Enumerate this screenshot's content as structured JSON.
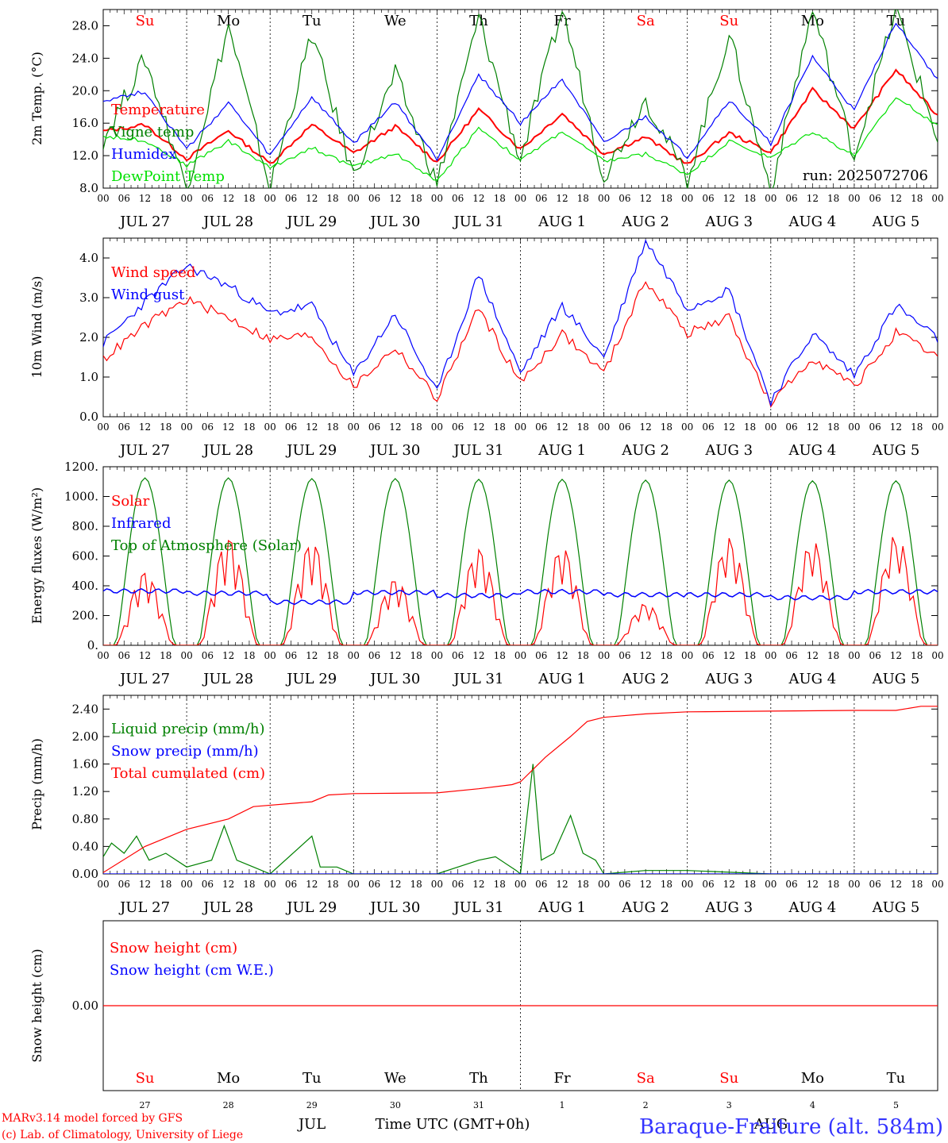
{
  "footer": {
    "model_line": "MARv3.14 model forced by GFS",
    "copyright_line": "(c) Lab. of Climatology, University of Liege",
    "time_label": "Time UTC (GMT+0h)",
    "station": "Baraque-Fraiture (alt. 584m)",
    "month_left": "JUL",
    "month_right": "AUG"
  },
  "colors": {
    "red": "#ff0000",
    "green": "#008000",
    "blue": "#0000ff",
    "lightgreen": "#00e000",
    "weekend": "#ff0000",
    "weekday": "#000000"
  },
  "days": [
    {
      "dow": "Su",
      "weekend": true,
      "date": "JUL 27",
      "num": "27"
    },
    {
      "dow": "Mo",
      "weekend": false,
      "date": "JUL 28",
      "num": "28"
    },
    {
      "dow": "Tu",
      "weekend": false,
      "date": "JUL 29",
      "num": "29"
    },
    {
      "dow": "We",
      "weekend": false,
      "date": "JUL 30",
      "num": "30"
    },
    {
      "dow": "Th",
      "weekend": false,
      "date": "JUL 31",
      "num": "31"
    },
    {
      "dow": "Fr",
      "weekend": false,
      "date": "AUG  1",
      "num": "1"
    },
    {
      "dow": "Sa",
      "weekend": true,
      "date": "AUG  2",
      "num": "2"
    },
    {
      "dow": "Su",
      "weekend": true,
      "date": "AUG  3",
      "num": "3"
    },
    {
      "dow": "Mo",
      "weekend": false,
      "date": "AUG  4",
      "num": "4"
    },
    {
      "dow": "Tu",
      "weekend": false,
      "date": "AUG  5",
      "num": "5"
    }
  ],
  "hour_ticks": [
    "00",
    "06",
    "12",
    "18"
  ],
  "end_hour_tick": "00",
  "chart_data": [
    {
      "id": "temp",
      "type": "line",
      "ylabel": "2m Temp. (°C)",
      "ylim": [
        8,
        30
      ],
      "yticks": [
        "8.0",
        "12.0",
        "16.0",
        "20.0",
        "24.0",
        "28.0"
      ],
      "ytick_values": [
        8,
        12,
        16,
        20,
        24,
        28
      ],
      "show_days": true,
      "annotation": "run: 2025072706",
      "x_days": [
        0,
        0.5,
        1,
        1.5,
        2,
        2.5,
        3,
        3.5,
        4,
        4.5,
        5,
        5.5,
        6,
        6.5,
        7,
        7.5,
        8,
        8.5,
        9,
        9.5,
        10
      ],
      "series": [
        {
          "name": "Temperature",
          "color": "#ff0000",
          "values": [
            15.0,
            15.8,
            11.6,
            15.1,
            11.0,
            15.8,
            12.3,
            15.6,
            11.2,
            17.7,
            12.8,
            17.2,
            12.2,
            14.3,
            10.9,
            14.8,
            12.4,
            20.1,
            15.3,
            22.6,
            16.9
          ]
        },
        {
          "name": "Vigne temp",
          "color": "#008000",
          "values": [
            14.0,
            24.0,
            8.0,
            28.0,
            8.0,
            27.0,
            9.5,
            22.0,
            8.5,
            29.0,
            11.5,
            30.0,
            9.5,
            19.0,
            9.0,
            27.0,
            7.8,
            30.0,
            12.0,
            30.0,
            14.0
          ]
        },
        {
          "name": "Humidex",
          "color": "#0000ff",
          "values": [
            18.8,
            19.9,
            12.8,
            18.5,
            12.0,
            19.2,
            13.5,
            18.6,
            11.6,
            22.0,
            16.0,
            21.5,
            13.5,
            16.8,
            11.8,
            18.8,
            13.5,
            24.2,
            17.5,
            28.5,
            21.3
          ]
        },
        {
          "name": "DewPoint Temp",
          "color": "#00e000",
          "values": [
            14.4,
            13.9,
            10.8,
            13.8,
            10.5,
            13.0,
            10.6,
            12.3,
            8.8,
            15.5,
            11.4,
            15.0,
            11.3,
            12.2,
            9.7,
            13.8,
            11.7,
            15.0,
            12.0,
            19.2,
            15.8
          ]
        }
      ]
    },
    {
      "id": "wind",
      "type": "line",
      "ylabel": "10m Wind (m/s)",
      "ylim": [
        0,
        4.5
      ],
      "yticks": [
        "0.0",
        "1.0",
        "2.0",
        "3.0",
        "4.0"
      ],
      "ytick_values": [
        0,
        1,
        2,
        3,
        4
      ],
      "show_days": false,
      "x_days": [
        0,
        0.5,
        1,
        1.5,
        2,
        2.5,
        3,
        3.5,
        4,
        4.5,
        5,
        5.5,
        6,
        6.5,
        7,
        7.5,
        8,
        8.5,
        9,
        9.5,
        10
      ],
      "series": [
        {
          "name": "Wind speed",
          "color": "#ff0000",
          "values": [
            1.45,
            2.3,
            2.95,
            2.5,
            1.95,
            2.05,
            0.75,
            1.75,
            0.45,
            2.75,
            0.85,
            2.1,
            1.1,
            3.45,
            2.1,
            2.5,
            0.3,
            1.5,
            0.75,
            2.1,
            1.5
          ]
        },
        {
          "name": "Wind gust",
          "color": "#0000ff",
          "values": [
            1.85,
            2.9,
            3.8,
            3.3,
            2.6,
            2.8,
            1.05,
            2.6,
            0.6,
            3.6,
            1.1,
            2.8,
            1.5,
            4.45,
            2.75,
            3.2,
            0.4,
            2.1,
            1.05,
            2.8,
            1.95
          ]
        }
      ]
    },
    {
      "id": "energy",
      "type": "line",
      "ylabel": "Energy fluxes (W/m²)",
      "ylim": [
        0,
        1200
      ],
      "yticks": [
        "0.",
        "200.",
        "400.",
        "600.",
        "800.",
        "1000.",
        "1200."
      ],
      "ytick_values": [
        0,
        200,
        400,
        600,
        800,
        1000,
        1200
      ],
      "show_days": false,
      "daily_solar_peak": [
        510,
        750,
        720,
        460,
        670,
        680,
        290,
        740,
        720,
        760
      ],
      "daily_toa_peak": [
        1125,
        1125,
        1120,
        1120,
        1115,
        1115,
        1110,
        1110,
        1105,
        1105
      ],
      "daily_infrared": [
        365,
        350,
        290,
        355,
        335,
        360,
        340,
        340,
        320,
        360
      ],
      "series": [
        {
          "name": "Solar",
          "color": "#ff0000"
        },
        {
          "name": "Infrared",
          "color": "#0000ff"
        },
        {
          "name": "Top of Atmosphere (Solar)",
          "color": "#008000"
        }
      ]
    },
    {
      "id": "precip",
      "type": "line",
      "ylabel": "Precip (mm/h)",
      "ylim": [
        0,
        2.6
      ],
      "yticks": [
        "0.00",
        "0.40",
        "0.80",
        "1.20",
        "1.60",
        "2.00",
        "2.40"
      ],
      "ytick_values": [
        0,
        0.4,
        0.8,
        1.2,
        1.6,
        2.0,
        2.4
      ],
      "show_days": false,
      "series": [
        {
          "name": "Liquid precip (mm/h)",
          "color": "#008000",
          "x_days": [
            0,
            0.1,
            0.25,
            0.4,
            0.55,
            0.75,
            1.0,
            1.3,
            1.45,
            1.6,
            1.8,
            2.0,
            2.5,
            2.6,
            2.8,
            3.0,
            4.0,
            4.5,
            4.7,
            4.95,
            5.0,
            5.15,
            5.25,
            5.4,
            5.6,
            5.75,
            5.9,
            6.0,
            6.5,
            7.0,
            8.0,
            9.0,
            10.5,
            10.6,
            10.8,
            11.0
          ],
          "values": [
            0.25,
            0.45,
            0.3,
            0.55,
            0.2,
            0.3,
            0.1,
            0.2,
            0.7,
            0.2,
            0.1,
            0.0,
            0.55,
            0.1,
            0.1,
            0.0,
            0.0,
            0.2,
            0.25,
            0.05,
            0.0,
            1.6,
            0.2,
            0.3,
            0.85,
            0.3,
            0.2,
            0.0,
            0.05,
            0.05,
            0.0,
            0.0,
            0.0,
            0.15,
            0.05,
            0.0
          ]
        },
        {
          "name": "Snow precip (mm/h)",
          "color": "#0000ff",
          "x_days": [
            0,
            10
          ],
          "values": [
            0,
            0
          ]
        },
        {
          "name": "Total cumulated (cm)",
          "color": "#ff0000",
          "x_days": [
            0,
            0.5,
            1.0,
            1.5,
            1.8,
            2.5,
            2.7,
            3.0,
            4.0,
            4.5,
            4.9,
            5.0,
            5.3,
            5.6,
            5.8,
            6.0,
            6.5,
            7.0,
            8.0,
            9.0,
            9.5,
            9.8,
            10.0
          ],
          "values": [
            0.02,
            0.4,
            0.65,
            0.8,
            0.98,
            1.05,
            1.15,
            1.17,
            1.18,
            1.24,
            1.3,
            1.34,
            1.7,
            2.0,
            2.22,
            2.28,
            2.33,
            2.36,
            2.37,
            2.38,
            2.38,
            2.44,
            2.44
          ]
        }
      ]
    },
    {
      "id": "snow",
      "type": "line",
      "ylabel": "Snow height (cm)",
      "ylim": [
        -1,
        1
      ],
      "yticks": [
        "0.00"
      ],
      "ytick_values": [
        0
      ],
      "show_days": true,
      "x_days": [
        0,
        10
      ],
      "series": [
        {
          "name": "Snow height (cm)",
          "color": "#ff0000",
          "values": [
            0,
            0
          ]
        },
        {
          "name": "Snow height (cm W.E.)",
          "color": "#0000ff"
        }
      ]
    }
  ]
}
